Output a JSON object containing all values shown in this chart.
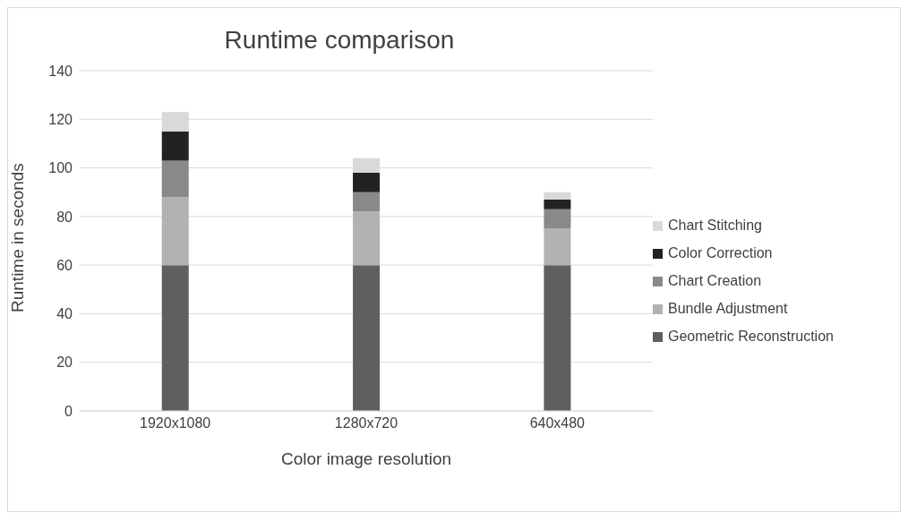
{
  "chart_data": {
    "type": "bar",
    "title": "Runtime comparison",
    "xlabel": "Color image resolution",
    "ylabel": "Runtime in seconds",
    "categories": [
      "1920x1080",
      "1280x720",
      "640x480"
    ],
    "stacked": true,
    "series": [
      {
        "name": "Geometric Reconstruction",
        "color": "#5f5f5f",
        "values": [
          60,
          60,
          60
        ]
      },
      {
        "name": "Bundle Adjustment",
        "color": "#b2b2b2",
        "values": [
          28,
          22,
          15
        ]
      },
      {
        "name": "Chart Creation",
        "color": "#898989",
        "values": [
          15,
          8,
          8
        ]
      },
      {
        "name": "Color Correction",
        "color": "#222222",
        "values": [
          12,
          8,
          4
        ]
      },
      {
        "name": "Chart Stitching",
        "color": "#d9d9d9",
        "values": [
          8,
          6,
          3
        ]
      }
    ],
    "ylim": [
      0,
      140
    ],
    "yticks": [
      0,
      20,
      40,
      60,
      80,
      100,
      120,
      140
    ],
    "grid": "y",
    "legend": "right"
  }
}
